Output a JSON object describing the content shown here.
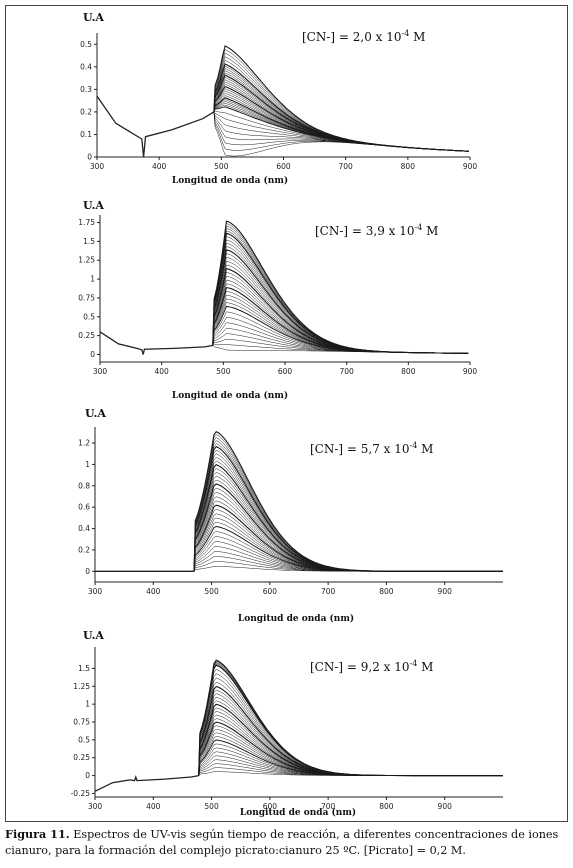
{
  "caption": {
    "label": "Figura 11.",
    "text": " Espectros de UV-vis según tiempo de reacción, a diferentes concentraciones de iones cianuro, para la formación del complejo picrato:cianuro 25 ºC. [Picrato] = 0,2 M."
  },
  "chart_data": [
    {
      "type": "line",
      "ylabel": "U.A",
      "xlabel": "Longitud de onda  (nm)",
      "annotation": "[CN-] = 2,0 x 10-4 M",
      "xlim": [
        300,
        900
      ],
      "ylim": [
        0,
        0.55
      ],
      "xticks": [
        "300",
        "400",
        "500",
        "600",
        "700",
        "800",
        "900"
      ],
      "yticks": [
        "0",
        "0.1",
        "0.2",
        "0.3",
        "0.4",
        "0.5"
      ],
      "ytick_values": [
        0,
        0.1,
        0.2,
        0.3,
        0.4,
        0.5
      ],
      "baseline": [
        [
          300,
          0.27
        ],
        [
          330,
          0.15
        ],
        [
          360,
          0.1
        ],
        [
          372,
          0.08
        ],
        [
          375,
          0.0
        ],
        [
          378,
          0.09
        ],
        [
          420,
          0.12
        ],
        [
          470,
          0.17
        ],
        [
          488,
          0.2
        ]
      ],
      "series": [
        {
          "peak": 0.51
        },
        {
          "peak": 0.43
        },
        {
          "peak": 0.38
        },
        {
          "peak": 0.33
        },
        {
          "peak": 0.28
        },
        {
          "peak": 0.24
        }
      ]
    },
    {
      "type": "line",
      "ylabel": "U.A",
      "xlabel": "Longitud de onda (nm)",
      "annotation": "[CN-] = 3,9 x 10-4 M",
      "xlim": [
        300,
        900
      ],
      "ylim": [
        -0.1,
        1.85
      ],
      "xticks": [
        "300",
        "400",
        "500",
        "600",
        "700",
        "800",
        "900"
      ],
      "yticks": [
        "0",
        "0.25",
        "0.5",
        "0.75",
        "1",
        "1.25",
        "1.5",
        "1.75"
      ],
      "ytick_values": [
        0,
        0.25,
        0.5,
        0.75,
        1,
        1.25,
        1.5,
        1.75
      ],
      "baseline": [
        [
          300,
          0.3
        ],
        [
          330,
          0.14
        ],
        [
          360,
          0.08
        ],
        [
          368,
          0.06
        ],
        [
          370,
          0.0
        ],
        [
          372,
          0.07
        ],
        [
          420,
          0.08
        ],
        [
          470,
          0.1
        ],
        [
          483,
          0.12
        ]
      ],
      "series": [
        {
          "peak": 1.78
        },
        {
          "peak": 1.62
        },
        {
          "peak": 1.4
        },
        {
          "peak": 1.15
        },
        {
          "peak": 0.9
        },
        {
          "peak": 0.65
        }
      ]
    },
    {
      "type": "line",
      "ylabel": "U.A",
      "xlabel": "Longitud de onda (nm)",
      "annotation": "[CN-] = 5,7 x 10-4 M",
      "xlim": [
        300,
        1000
      ],
      "ylim": [
        -0.1,
        1.35
      ],
      "xticks": [
        "300",
        "400",
        "500",
        "600",
        "700",
        "800",
        "900"
      ],
      "yticks": [
        "0",
        "0.2",
        "0.4",
        "0.6",
        "0.8",
        "1",
        "1.2"
      ],
      "ytick_values": [
        0,
        0.2,
        0.4,
        0.6,
        0.8,
        1,
        1.2
      ],
      "baseline": [
        [
          300,
          0.0
        ],
        [
          400,
          0.0
        ],
        [
          470,
          0.0
        ]
      ],
      "series": [
        {
          "peak": 1.31
        },
        {
          "peak": 1.17
        },
        {
          "peak": 1.0
        },
        {
          "peak": 0.82
        },
        {
          "peak": 0.62
        },
        {
          "peak": 0.42
        }
      ]
    },
    {
      "type": "line",
      "ylabel": "U.A",
      "xlabel": "Longitud de onda (nm)",
      "annotation": "[CN-] = 9,2 x 10-4 M",
      "xlim": [
        300,
        1000
      ],
      "ylim": [
        -0.3,
        1.8
      ],
      "xticks": [
        "300",
        "400",
        "500",
        "600",
        "700",
        "800",
        "900"
      ],
      "yticks": [
        "-0.25",
        "0",
        "0.25",
        "0.5",
        "0.75",
        "1",
        "1.25",
        "1.5"
      ],
      "ytick_values": [
        -0.25,
        0,
        0.25,
        0.5,
        0.75,
        1,
        1.25,
        1.5
      ],
      "baseline": [
        [
          300,
          -0.22
        ],
        [
          330,
          -0.1
        ],
        [
          360,
          -0.06
        ],
        [
          368,
          -0.07
        ],
        [
          370,
          -0.02
        ],
        [
          372,
          -0.07
        ],
        [
          420,
          -0.05
        ],
        [
          465,
          -0.02
        ],
        [
          478,
          0.0
        ]
      ],
      "series": [
        {
          "peak": 1.62
        },
        {
          "peak": 1.55
        },
        {
          "peak": 1.25
        },
        {
          "peak": 1.0
        },
        {
          "peak": 0.75
        },
        {
          "peak": 0.5
        }
      ]
    }
  ]
}
